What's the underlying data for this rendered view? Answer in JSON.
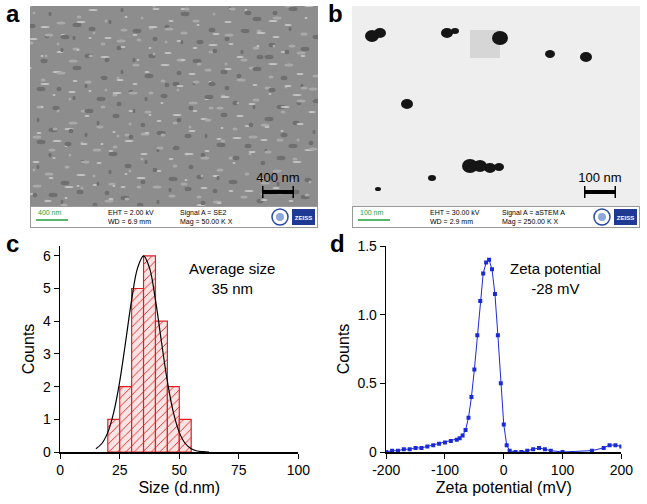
{
  "images": [
    {
      "label": "a",
      "scale_bar": "400 nm",
      "info_scale": "400 nm",
      "info": [
        "EHT = 2.00 kV",
        "WD = 6.9 mm",
        "Signal A = SE2",
        "Mag = 50.00 K X"
      ],
      "logo": "ZEISS"
    },
    {
      "label": "b",
      "scale_bar": "100 nm",
      "info_scale": "100 nm",
      "info": [
        "EHT = 30.00 kV",
        "WD = 2.9 mm",
        "Signal A = aSTEM A",
        "Mag = 250.00 K X"
      ],
      "logo": "ZEISS"
    }
  ],
  "chart_data": [
    {
      "label": "c",
      "type": "histogram",
      "bins": [
        20,
        25,
        30,
        35,
        40,
        45,
        50,
        55
      ],
      "counts": [
        1,
        2,
        5,
        6,
        4,
        2,
        1
      ],
      "color": "#e02020",
      "fit": {
        "x": [
          15,
          17.5,
          20,
          22.5,
          25,
          27.5,
          30,
          32.5,
          35,
          37.5,
          40,
          42.5,
          45,
          47.5,
          50,
          52.5,
          55,
          57.5,
          60,
          62.5
        ],
        "values": [
          0.1,
          0.26,
          0.6,
          1.22,
          2.16,
          3.38,
          4.65,
          5.63,
          6.0,
          5.63,
          4.65,
          3.38,
          2.16,
          1.22,
          0.6,
          0.26,
          0.1,
          0.03,
          0.01,
          0
        ],
        "color": "#000000"
      },
      "xlim": [
        0,
        100
      ],
      "xticks": [
        0,
        25,
        50,
        75,
        100
      ],
      "ylim": [
        0,
        6.3
      ],
      "yticks": [
        0,
        1,
        2,
        3,
        4,
        5,
        6
      ],
      "xlabel": "Size (d.nm)",
      "ylabel": "Counts",
      "annotation": [
        "Average size",
        "35 nm"
      ]
    },
    {
      "label": "d",
      "type": "line",
      "marker": "square",
      "color": "#1a2bd6",
      "x": [
        -200,
        -190,
        -180,
        -170,
        -160,
        -150,
        -140,
        -130,
        -120,
        -110,
        -100,
        -90,
        -80,
        -75,
        -70,
        -65,
        -60,
        -55,
        -50,
        -45,
        -40,
        -35,
        -30,
        -25,
        -20,
        -15,
        -10,
        -5,
        0,
        5,
        10,
        20,
        30,
        40,
        50,
        60,
        70,
        80,
        100,
        150,
        170,
        180,
        190,
        200
      ],
      "values": [
        0,
        0.01,
        0.01,
        0.02,
        0.02,
        0.03,
        0.03,
        0.04,
        0.05,
        0.06,
        0.07,
        0.08,
        0.09,
        0.1,
        0.12,
        0.16,
        0.25,
        0.4,
        0.6,
        0.85,
        1.1,
        1.3,
        1.38,
        1.4,
        1.33,
        1.15,
        0.85,
        0.5,
        0.2,
        0.05,
        0.01,
        0,
        0,
        0.01,
        0.02,
        0.03,
        0.02,
        0.01,
        0,
        0.01,
        0.03,
        0.05,
        0.05,
        0.04
      ],
      "xlim": [
        -200,
        200
      ],
      "xticks": [
        -200,
        -100,
        0,
        100,
        200
      ],
      "ylim": [
        0,
        1.5
      ],
      "yticks": [
        0,
        0.5,
        {
          "value": 1,
          "label": "1.0"
        },
        1.5
      ],
      "xlabel": "Zeta potential (mV)",
      "ylabel": "Counts",
      "annotation": [
        "Zeta potential",
        "-28 mV"
      ]
    }
  ]
}
